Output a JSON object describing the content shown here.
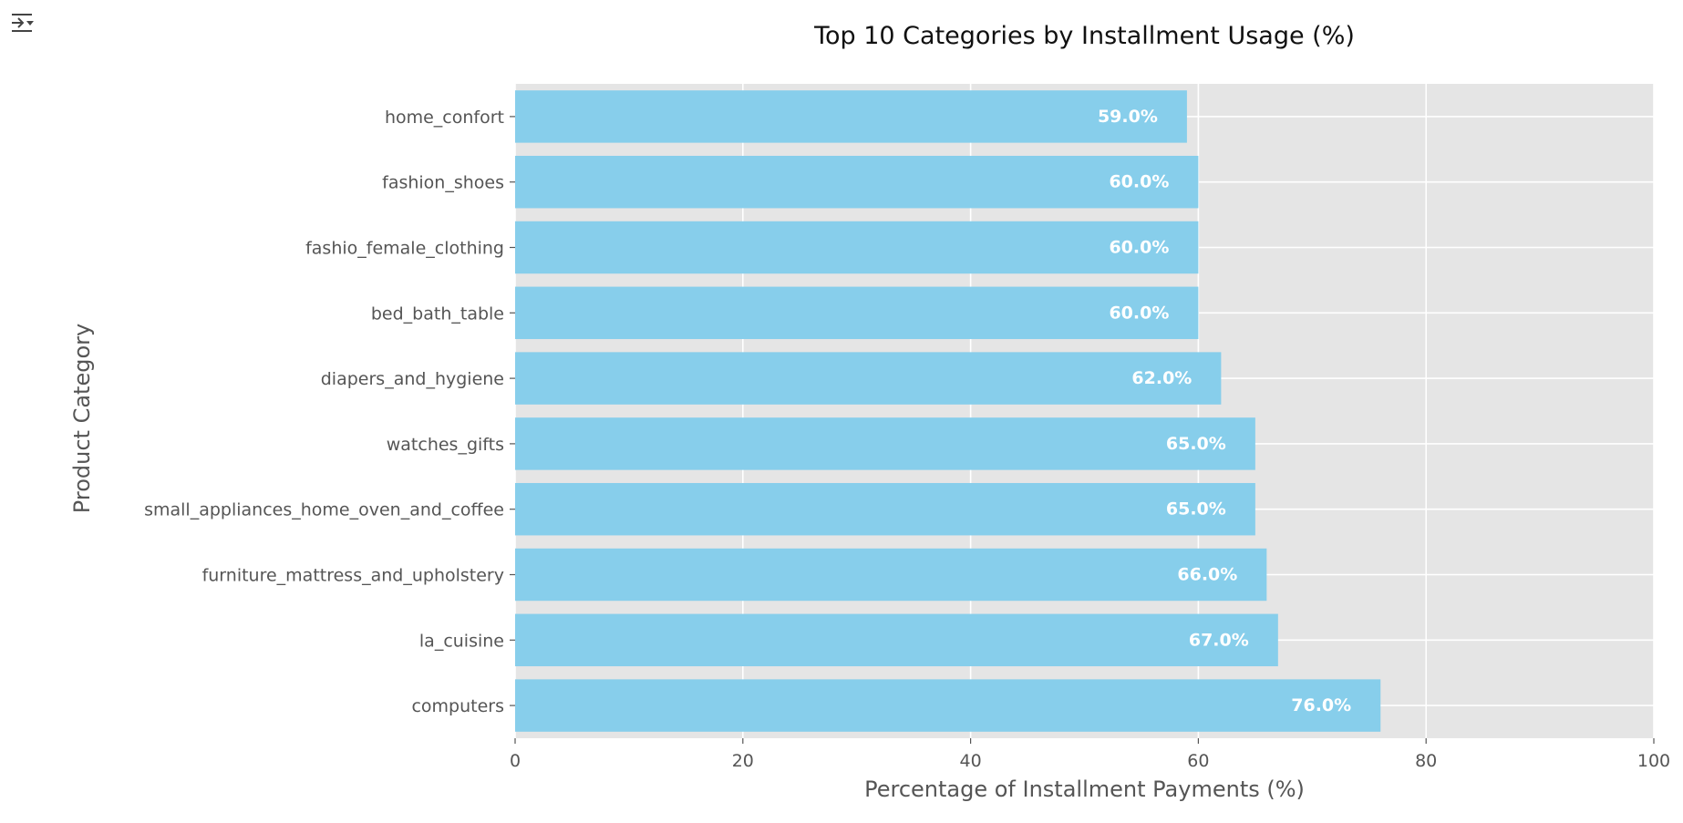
{
  "toolbar": {
    "output_toggle_icon": "output-settings-icon"
  },
  "chart_data": {
    "type": "bar",
    "orientation": "horizontal",
    "title": "Top 10 Categories by Installment Usage (%)",
    "xlabel": "Percentage of Installment Payments (%)",
    "ylabel": "Product Category",
    "xlim": [
      0,
      100
    ],
    "xticks": [
      0,
      20,
      40,
      60,
      80,
      100
    ],
    "grid": true,
    "bar_color": "#87ceeb",
    "plot_background": "#e5e5e5",
    "categories": [
      "home_confort",
      "fashion_shoes",
      "fashio_female_clothing",
      "bed_bath_table",
      "diapers_and_hygiene",
      "watches_gifts",
      "small_appliances_home_oven_and_coffee",
      "furniture_mattress_and_upholstery",
      "la_cuisine",
      "computers"
    ],
    "values": [
      59.0,
      60.0,
      60.0,
      60.0,
      62.0,
      65.0,
      65.0,
      66.0,
      67.0,
      76.0
    ],
    "data_labels": [
      "59.0%",
      "60.0%",
      "60.0%",
      "60.0%",
      "62.0%",
      "65.0%",
      "65.0%",
      "66.0%",
      "67.0%",
      "76.0%"
    ]
  }
}
